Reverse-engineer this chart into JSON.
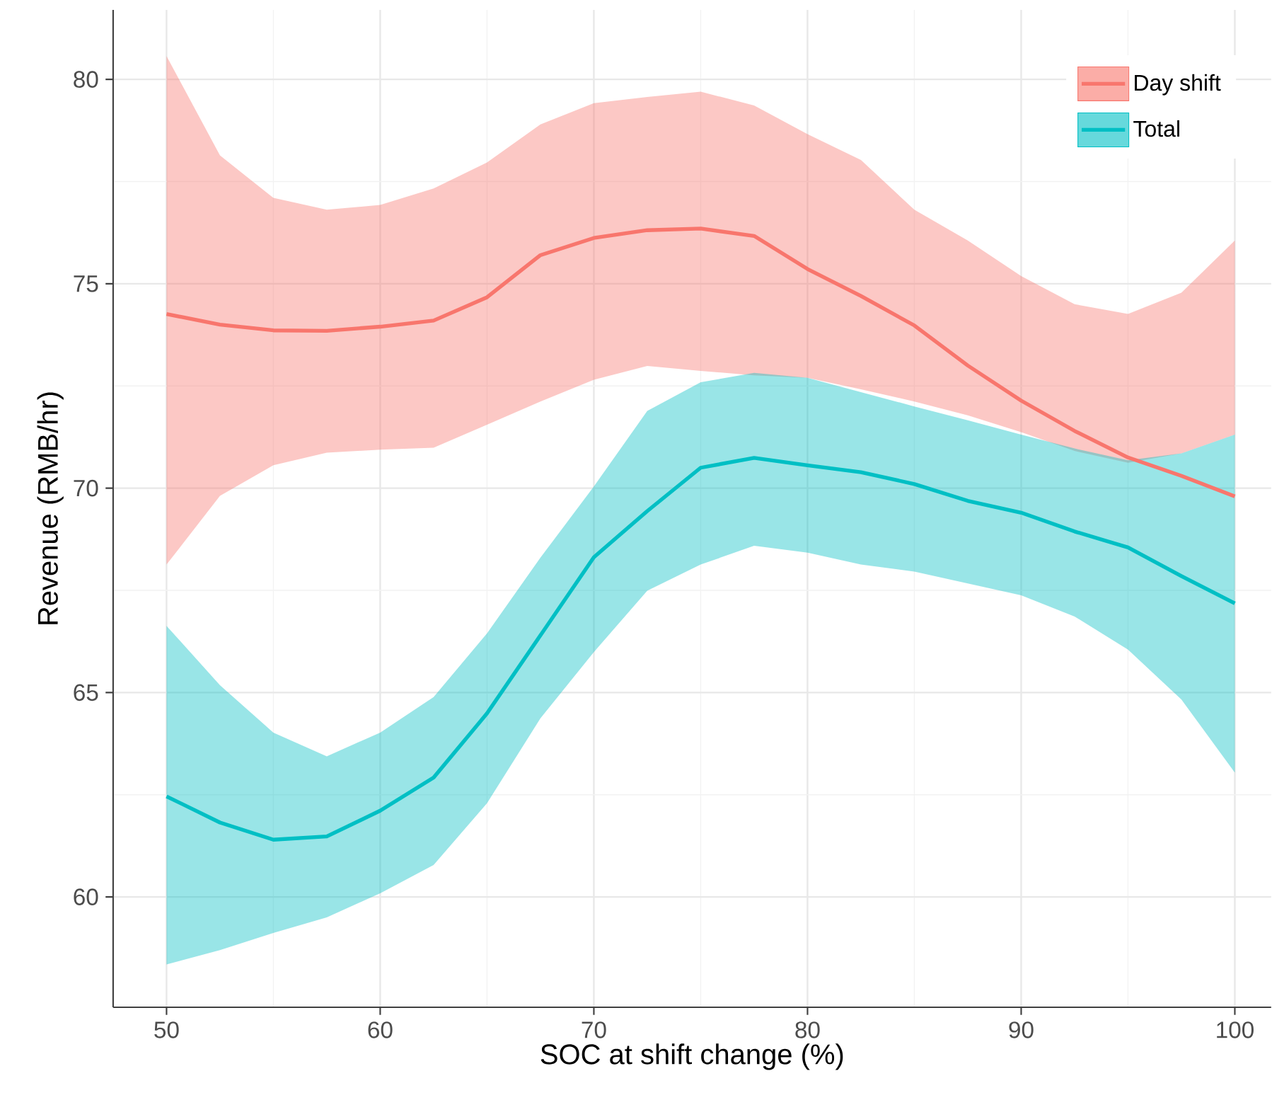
{
  "chart_data": {
    "type": "line",
    "xlabel": "SOC at shift change (%)",
    "ylabel": "Revenue (RMB/hr)",
    "x": [
      50,
      52.5,
      55,
      57.5,
      60,
      62.5,
      65,
      67.5,
      70,
      72.5,
      75,
      77.5,
      80,
      82.5,
      85,
      87.5,
      90,
      92.5,
      95,
      97.5,
      100
    ],
    "series": [
      {
        "name": "Day shift",
        "color": "#f8766d",
        "values": [
          74.26,
          74.0,
          73.86,
          73.85,
          73.95,
          74.1,
          74.67,
          75.7,
          76.12,
          76.31,
          76.35,
          76.17,
          75.36,
          74.7,
          73.98,
          73.0,
          72.14,
          71.4,
          70.75,
          70.3,
          69.8
        ],
        "upper": [
          80.57,
          78.14,
          77.1,
          76.81,
          76.93,
          77.33,
          77.97,
          78.9,
          79.42,
          79.57,
          79.7,
          79.36,
          78.66,
          78.03,
          76.81,
          76.06,
          75.19,
          74.5,
          74.26,
          74.78,
          76.06
        ],
        "lower": [
          68.13,
          69.81,
          70.56,
          70.87,
          70.94,
          70.99,
          71.55,
          72.12,
          72.65,
          72.99,
          72.87,
          72.76,
          72.7,
          72.42,
          72.12,
          71.78,
          71.37,
          70.91,
          70.62,
          70.85,
          71.31
        ]
      },
      {
        "name": "Total",
        "color": "#00bfc4",
        "values": [
          62.46,
          61.82,
          61.4,
          61.48,
          62.11,
          62.92,
          64.49,
          66.4,
          68.31,
          69.44,
          70.5,
          70.74,
          70.56,
          70.39,
          70.1,
          69.69,
          69.4,
          68.94,
          68.55,
          67.85,
          67.18
        ],
        "upper": [
          66.63,
          65.18,
          64.02,
          63.44,
          64.02,
          64.89,
          66.45,
          68.3,
          70.04,
          71.89,
          72.59,
          72.82,
          72.7,
          72.35,
          72.0,
          71.66,
          71.31,
          70.97,
          70.68,
          70.85,
          71.31
        ],
        "lower": [
          58.35,
          58.7,
          59.12,
          59.5,
          60.09,
          60.78,
          62.29,
          64.37,
          65.99,
          67.49,
          68.13,
          68.59,
          68.42,
          68.13,
          67.96,
          67.67,
          67.38,
          66.86,
          66.05,
          64.83,
          63.04
        ]
      }
    ],
    "xlim": [
      47.5,
      101.7
    ],
    "ylim": [
      57.3,
      81.7
    ],
    "xticks": [
      50,
      60,
      70,
      80,
      90,
      100
    ],
    "yticks": [
      60,
      65,
      70,
      75,
      80
    ],
    "grid": true,
    "legend": "top right",
    "marker": "none",
    "line_style": "solid"
  }
}
